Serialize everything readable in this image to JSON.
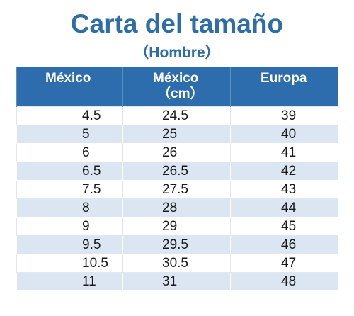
{
  "title": "Carta del tamaño",
  "subtitle": "（Hombre）",
  "table": {
    "headers": [
      {
        "label": "México",
        "sub": ""
      },
      {
        "label": "México",
        "sub": "（cm）"
      },
      {
        "label": "Europa",
        "sub": ""
      }
    ],
    "rows": [
      [
        "4.5",
        "24.5",
        "39"
      ],
      [
        "5",
        "25",
        "40"
      ],
      [
        "6",
        "26",
        "41"
      ],
      [
        "6.5",
        "26.5",
        "42"
      ],
      [
        "7.5",
        "27.5",
        "43"
      ],
      [
        "8",
        "28",
        "44"
      ],
      [
        "9",
        "29",
        "45"
      ],
      [
        "9.5",
        "29.5",
        "46"
      ],
      [
        "10.5",
        "30.5",
        "47"
      ],
      [
        "11",
        "31",
        "48"
      ]
    ]
  },
  "colors": {
    "title": "#2e6ea8",
    "header_bg": "#2d6cad",
    "stripe": "#dce6f2"
  }
}
